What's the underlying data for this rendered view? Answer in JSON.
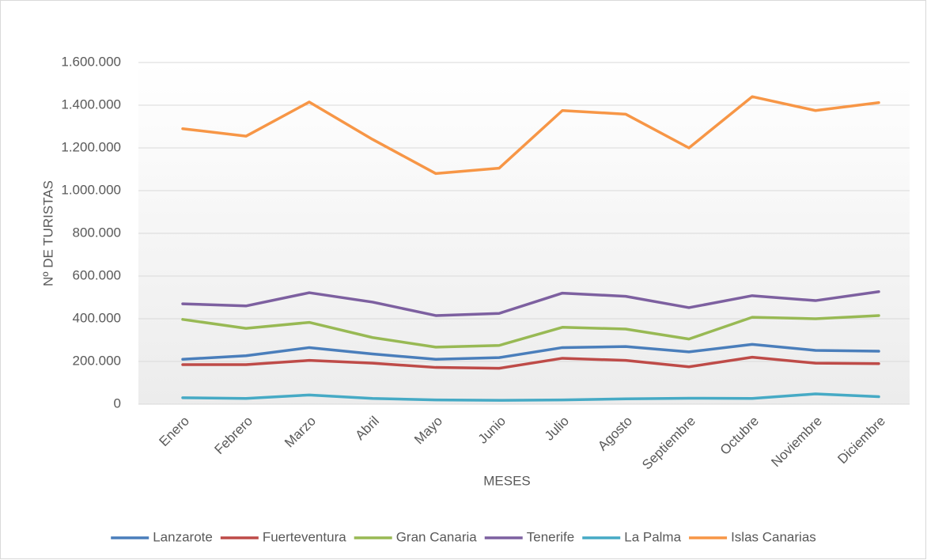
{
  "chart_data": {
    "type": "line",
    "x_label": "MESES",
    "y_label": "Nº DE TURISTAS",
    "categories": [
      "Enero",
      "Febrero",
      "Marzo",
      "Abril",
      "Mayo",
      "Junio",
      "Julio",
      "Agosto",
      "Septiembre",
      "Octubre",
      "Noviembre",
      "Diciembre"
    ],
    "series": [
      {
        "name": "Lanzarote",
        "color": "#4a7ebb",
        "values": [
          210000,
          227000,
          265000,
          235000,
          210000,
          218000,
          265000,
          270000,
          245000,
          280000,
          252000,
          248000
        ]
      },
      {
        "name": "Fuerteventura",
        "color": "#be4b48",
        "values": [
          185000,
          185000,
          205000,
          192000,
          172000,
          168000,
          215000,
          205000,
          175000,
          220000,
          192000,
          190000
        ]
      },
      {
        "name": "Gran Canaria",
        "color": "#98b954",
        "values": [
          397000,
          355000,
          383000,
          312000,
          267000,
          275000,
          360000,
          352000,
          305000,
          407000,
          400000,
          415000
        ]
      },
      {
        "name": "Tenerife",
        "color": "#7d60a0",
        "values": [
          470000,
          460000,
          522000,
          478000,
          415000,
          425000,
          520000,
          505000,
          452000,
          508000,
          485000,
          527000
        ]
      },
      {
        "name": "La Palma",
        "color": "#46aac5",
        "values": [
          30000,
          27000,
          43000,
          27000,
          20000,
          18000,
          20000,
          25000,
          28000,
          27000,
          48000,
          35000
        ]
      },
      {
        "name": "Islas Canarias",
        "color": "#f79646",
        "values": [
          1290000,
          1255000,
          1415000,
          1240000,
          1080000,
          1105000,
          1375000,
          1358000,
          1200000,
          1440000,
          1375000,
          1412000
        ]
      }
    ],
    "ylim": [
      0,
      1600000
    ],
    "yticks": [
      0,
      {
        "value": 200000,
        "label": "200.000"
      },
      {
        "value": 400000,
        "label": "400.000"
      },
      {
        "value": 600000,
        "label": "600.000"
      },
      {
        "value": 800000,
        "label": "800.000"
      },
      {
        "value": 1000000,
        "label": "1.000.000"
      },
      {
        "value": 1200000,
        "label": "1.200.000"
      },
      {
        "value": 1400000,
        "label": "1.400.000"
      },
      {
        "value": 1600000,
        "label": "1.600.000"
      }
    ],
    "grid": true,
    "legend": "bottom"
  }
}
